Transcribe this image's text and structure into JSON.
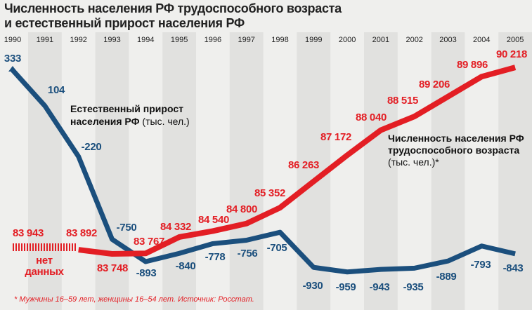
{
  "chart_data": {
    "type": "line",
    "title": "Численность населения РФ трудоспособного возраста и естественный прирост населения РФ",
    "x": [
      "1990",
      "1991",
      "1992",
      "1993",
      "1994",
      "1995",
      "1996",
      "1997",
      "1998",
      "1999",
      "2000",
      "2001",
      "2002",
      "2003",
      "2004",
      "2005"
    ],
    "series": [
      {
        "name": "Естественный прирост населения РФ (тыс. чел.)",
        "color": "#1b4f7d",
        "values": [
          333,
          104,
          -220,
          -750,
          -893,
          -840,
          -778,
          -756,
          -705,
          -930,
          -959,
          -943,
          -935,
          -889,
          -793,
          -843
        ],
        "labels": [
          "333",
          "104",
          "-220",
          "-750",
          "-893",
          "-840",
          "-778",
          "-756",
          "-705",
          "-930",
          "-959",
          "-943",
          "-935",
          "-889",
          "-793",
          "-843"
        ]
      },
      {
        "name": "Численность населения РФ трудоспособного возраста (тыс. чел.)*",
        "color": "#e31e24",
        "values": [
          83943,
          null,
          83892,
          83748,
          83767,
          84332,
          84540,
          84800,
          85352,
          86263,
          87172,
          88040,
          88515,
          89206,
          89896,
          90218
        ],
        "labels": [
          "83 943",
          "",
          "83 892",
          "83 748",
          "83 767",
          "84 332",
          "84 540",
          "84 800",
          "85 352",
          "86 263",
          "87 172",
          "88 040",
          "88 515",
          "89 206",
          "89 896",
          "90 218"
        ]
      }
    ],
    "annotations": {
      "blue_label": [
        "Естественный прирост",
        "населения РФ",
        " (тыс. чел.)"
      ],
      "red_label": [
        "Численность населения РФ",
        "трудоспособного возраста",
        "(тыс. чел.)*"
      ],
      "no_data": [
        "нет",
        "данных"
      ]
    },
    "footnote": "* Мужчины 16–59 лет, женщины 16–54 лет. Источник: Росстат.",
    "grid": false
  },
  "colors": {
    "background": "#efefed",
    "band": "#e1e1df",
    "red": "#e31e24",
    "blue": "#1b4f7d"
  }
}
